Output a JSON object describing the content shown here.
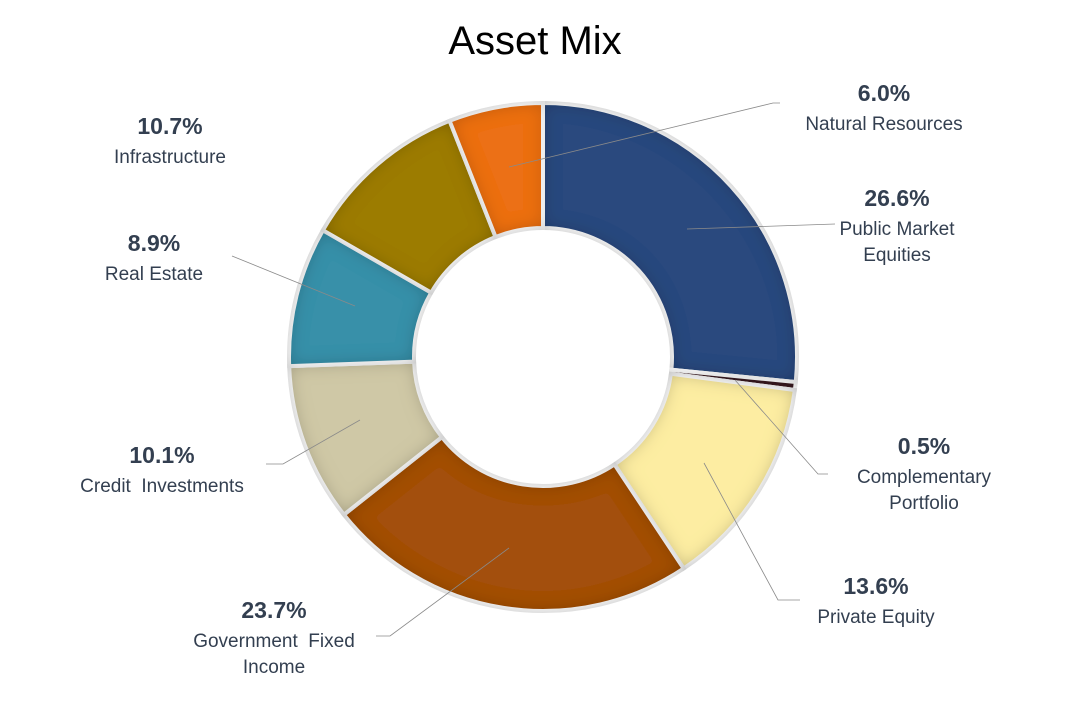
{
  "chart_data": {
    "type": "pie",
    "variant": "donut",
    "title": "Asset Mix",
    "start": "top, clockwise",
    "slices": [
      {
        "label": "Public Market Equities",
        "lines": [
          "Public Market",
          "Equities"
        ],
        "value": 26.6,
        "display": "26.6%",
        "color": "#2b4a7e"
      },
      {
        "label": "Complementary Portfolio",
        "lines": [
          "Complementary",
          "Portfolio"
        ],
        "value": 0.5,
        "display": "0.5%",
        "color": "#3a1c22"
      },
      {
        "label": "Private Equity",
        "lines": [
          "Private Equity"
        ],
        "value": 13.6,
        "display": "13.6%",
        "color": "#fdeda2"
      },
      {
        "label": "Government Fixed Income",
        "lines": [
          "Government  Fixed",
          "Income"
        ],
        "value": 23.7,
        "display": "23.7%",
        "color": "#a3500f"
      },
      {
        "label": "Credit Investments",
        "lines": [
          "Credit  Investments"
        ],
        "value": 10.1,
        "display": "10.1%",
        "color": "#cfc8a6"
      },
      {
        "label": "Real Estate",
        "lines": [
          "Real Estate"
        ],
        "value": 8.9,
        "display": "8.9%",
        "color": "#3990a9"
      },
      {
        "label": "Infrastructure",
        "lines": [
          "Infrastructure"
        ],
        "value": 10.7,
        "display": "10.7%",
        "color": "#9c7b06"
      },
      {
        "label": "Natural Resources",
        "lines": [
          "Natural Resources"
        ],
        "value": 6.0,
        "display": "6.0%",
        "color": "#ec7012"
      }
    ]
  }
}
